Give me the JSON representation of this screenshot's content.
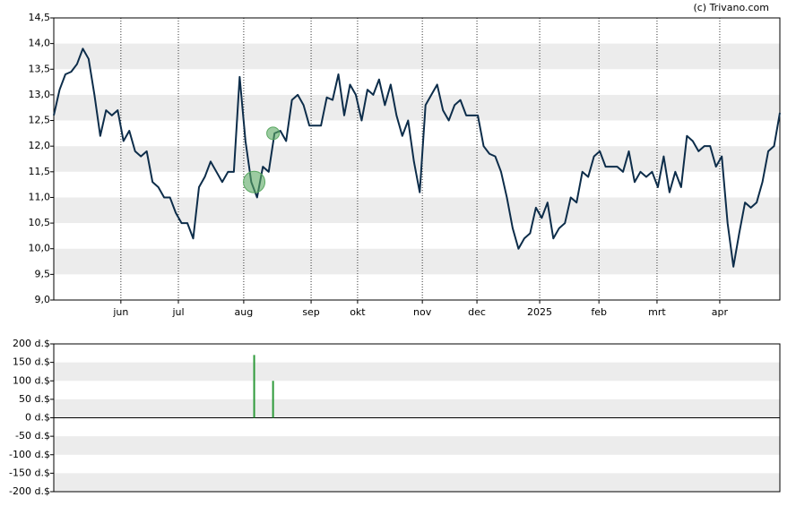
{
  "chart_data": [
    {
      "type": "line",
      "credit": "(c) Trivano.com",
      "x": [
        0,
        2,
        4,
        6,
        8,
        10,
        12,
        14,
        16,
        18,
        20,
        22,
        24,
        26,
        28,
        30,
        32,
        34,
        36,
        38,
        40,
        42,
        44,
        46,
        48,
        50,
        52,
        54,
        56,
        58,
        60,
        62,
        64,
        66,
        68,
        70,
        72,
        74,
        76,
        78,
        80,
        82,
        84,
        86,
        88,
        90,
        92,
        94,
        96,
        98,
        100,
        102,
        104,
        106,
        108,
        110,
        112,
        114,
        116,
        118,
        120,
        122,
        124,
        126,
        128,
        130,
        132,
        134,
        136,
        138,
        140,
        142,
        144,
        146,
        148,
        150,
        152,
        154,
        156,
        158,
        160,
        162,
        164,
        166,
        168,
        170,
        172,
        174,
        176,
        178,
        180,
        182,
        184,
        186,
        188,
        190,
        192,
        194,
        196,
        198,
        200,
        202,
        204,
        206,
        208,
        210,
        212,
        214,
        216,
        218,
        220,
        222,
        224,
        226,
        228,
        230,
        232,
        234,
        236,
        238,
        240,
        242,
        244,
        246,
        248,
        250
      ],
      "values": [
        12.6,
        13.1,
        13.4,
        13.45,
        13.6,
        13.9,
        13.7,
        13.0,
        12.2,
        12.7,
        12.6,
        12.7,
        12.1,
        12.3,
        11.9,
        11.8,
        11.9,
        11.3,
        11.2,
        11.0,
        11.0,
        10.7,
        10.5,
        10.5,
        10.2,
        11.2,
        11.4,
        11.7,
        11.5,
        11.3,
        11.5,
        11.5,
        13.35,
        12.1,
        11.3,
        11.0,
        11.6,
        11.5,
        12.25,
        12.3,
        12.1,
        12.9,
        13.0,
        12.8,
        12.4,
        12.4,
        12.4,
        12.95,
        12.9,
        13.4,
        12.6,
        13.2,
        13.0,
        12.5,
        13.1,
        13.0,
        13.3,
        12.8,
        13.2,
        12.6,
        12.2,
        12.5,
        11.7,
        11.1,
        12.8,
        13.0,
        13.2,
        12.7,
        12.5,
        12.8,
        12.9,
        12.6,
        12.6,
        12.6,
        12.0,
        11.85,
        11.8,
        11.5,
        11.0,
        10.4,
        10.0,
        10.2,
        10.3,
        10.8,
        10.6,
        10.9,
        10.2,
        10.4,
        10.5,
        11.0,
        10.9,
        11.5,
        11.4,
        11.8,
        11.9,
        11.6,
        11.6,
        11.6,
        11.5,
        11.9,
        11.3,
        11.5,
        11.4,
        11.5,
        11.2,
        11.8,
        11.1,
        11.5,
        11.2,
        12.2,
        12.1,
        11.9,
        12.0,
        12.0,
        11.6,
        11.8,
        10.5,
        9.65,
        10.3,
        10.9,
        10.8,
        10.9,
        11.3,
        11.9,
        12.0,
        12.65
      ],
      "color": "#0d2d4a",
      "markers": {
        "x": [
          69,
          75.5
        ],
        "values": [
          11.3,
          12.25
        ],
        "color": "#5aa862"
      },
      "xlim": [
        0,
        250
      ],
      "xticks": [
        {
          "value": 23.1,
          "label": "jun"
        },
        {
          "value": 42.9,
          "label": "jul"
        },
        {
          "value": 65.4,
          "label": "aug"
        },
        {
          "value": 88.6,
          "label": "sep"
        },
        {
          "value": 104.6,
          "label": "okt"
        },
        {
          "value": 126.9,
          "label": "nov"
        },
        {
          "value": 145.7,
          "label": "dec"
        },
        {
          "value": 167.3,
          "label": "2025"
        },
        {
          "value": 187.7,
          "label": "feb"
        },
        {
          "value": 207.7,
          "label": "mrt"
        },
        {
          "value": 229.3,
          "label": "apr"
        }
      ],
      "ylim": [
        9.0,
        14.5
      ],
      "yticks": [
        {
          "value": 9.0,
          "label": "9,0"
        },
        {
          "value": 9.5,
          "label": "9,5"
        },
        {
          "value": 10.0,
          "label": "10,0"
        },
        {
          "value": 10.5,
          "label": "10,5"
        },
        {
          "value": 11.0,
          "label": "11,0"
        },
        {
          "value": 11.5,
          "label": "11,5"
        },
        {
          "value": 12.0,
          "label": "12,0"
        },
        {
          "value": 12.5,
          "label": "12,5"
        },
        {
          "value": 13.0,
          "label": "13,0"
        },
        {
          "value": 13.5,
          "label": "13,5"
        },
        {
          "value": 14.0,
          "label": "14,0"
        },
        {
          "value": 14.5,
          "label": "14,5"
        }
      ],
      "grid": true
    },
    {
      "type": "bar",
      "x": [
        69,
        75.5
      ],
      "values": [
        170,
        100
      ],
      "color": "#2e9a3a",
      "xlim": [
        0,
        250
      ],
      "ylim": [
        -200,
        200
      ],
      "yticks": [
        {
          "value": -200,
          "label": "-200 d.$"
        },
        {
          "value": -150,
          "label": "-150 d.$"
        },
        {
          "value": -100,
          "label": "-100 d.$"
        },
        {
          "value": -50,
          "label": "-50 d.$"
        },
        {
          "value": 0,
          "label": "0 d.$"
        },
        {
          "value": 50,
          "label": "50 d.$"
        },
        {
          "value": 100,
          "label": "100 d.$"
        },
        {
          "value": 150,
          "label": "150 d.$"
        },
        {
          "value": 200,
          "label": "200 d.$"
        }
      ]
    }
  ]
}
